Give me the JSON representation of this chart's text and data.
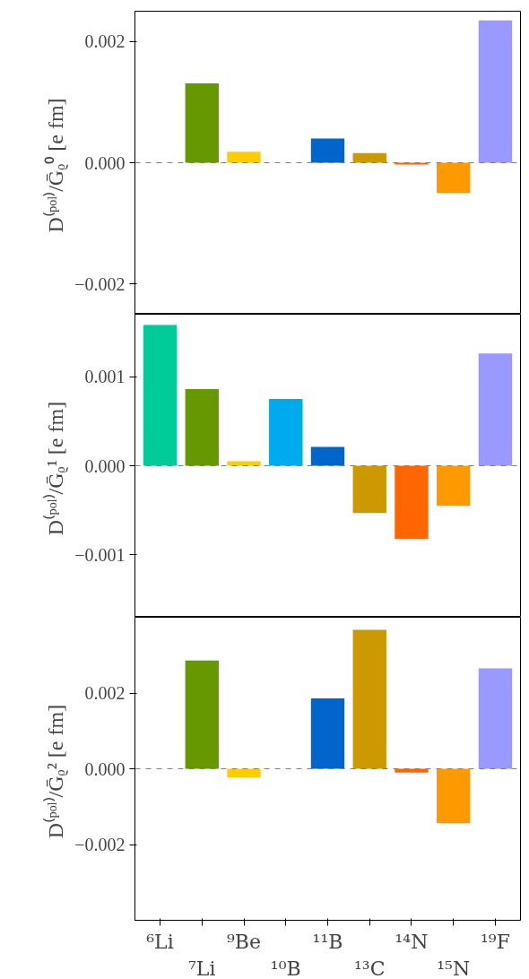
{
  "chart_data": [
    {
      "type": "bar",
      "ylabel": "D⁽ᵖᵒˡ⁾/Ḡᵨ⁰  [e fm]",
      "categories": [
        null,
        null,
        null,
        null,
        null,
        null,
        null,
        null,
        null
      ],
      "values": [
        0.0,
        0.00131,
        0.00018,
        0.0,
        0.0004,
        0.00016,
        -3e-05,
        -0.0005,
        0.00235
      ],
      "colors": [
        "#00cc99",
        "#669900",
        "#ffcc00",
        "#00aaee",
        "#0066cc",
        "#cc9900",
        "#ff6600",
        "#ff9900",
        "#9999ff"
      ],
      "ylim": [
        -0.0025,
        0.0025
      ],
      "yticks": [
        {
          "value": -0.002,
          "label": "−0.002"
        },
        {
          "value": 0,
          "label": "0.000"
        },
        {
          "value": 0.002,
          "label": "0.002"
        }
      ],
      "ref_lines": [
        {
          "axis": "y",
          "value": 0,
          "color": "#808080",
          "line_style": "dashed"
        }
      ],
      "tick_labels": "y",
      "grid": false
    },
    {
      "type": "bar",
      "ylabel": "D⁽ᵖᵒˡ⁾/Ḡᵨ¹  [e fm]",
      "categories": [
        null,
        null,
        null,
        null,
        null,
        null,
        null,
        null,
        null
      ],
      "values": [
        0.00158,
        0.00086,
        5e-05,
        0.00075,
        0.00021,
        -0.00053,
        -0.00082,
        -0.00045,
        0.00126
      ],
      "colors": [
        "#00cc99",
        "#669900",
        "#ffcc00",
        "#00aaee",
        "#0066cc",
        "#cc9900",
        "#ff6600",
        "#ff9900",
        "#9999ff"
      ],
      "ylim": [
        -0.0017,
        0.0017
      ],
      "yticks": [
        {
          "value": -0.001,
          "label": "−0.001"
        },
        {
          "value": 0,
          "label": "0.000"
        },
        {
          "value": 0.001,
          "label": "0.001"
        }
      ],
      "ref_lines": [
        {
          "axis": "y",
          "value": 0,
          "color": "#808080",
          "line_style": "dashed"
        }
      ],
      "tick_labels": "y",
      "grid": false
    },
    {
      "type": "bar",
      "ylabel": "D⁽ᵖᵒˡ⁾/Ḡᵨ²  [e fm]",
      "categories": [
        "⁶Li",
        "⁷Li",
        "⁹Be",
        "¹⁰B",
        "¹¹B",
        "¹³C",
        "¹⁴N",
        "¹⁵N",
        "¹⁹F"
      ],
      "values": [
        0.0,
        0.00286,
        -0.00023,
        0.0,
        0.00186,
        0.00367,
        -0.0001,
        -0.00144,
        0.00265
      ],
      "colors": [
        "#00cc99",
        "#669900",
        "#ffcc00",
        "#00aaee",
        "#0066cc",
        "#cc9900",
        "#ff6600",
        "#ff9900",
        "#9999ff"
      ],
      "ylim": [
        -0.004,
        0.004
      ],
      "yticks": [
        {
          "value": -0.002,
          "label": "−0.002"
        },
        {
          "value": 0,
          "label": "0.000"
        },
        {
          "value": 0.002,
          "label": "0.002"
        }
      ],
      "ref_lines": [
        {
          "axis": "y",
          "value": 0,
          "color": "#808080",
          "line_style": "dashed"
        }
      ],
      "grid": false
    }
  ]
}
